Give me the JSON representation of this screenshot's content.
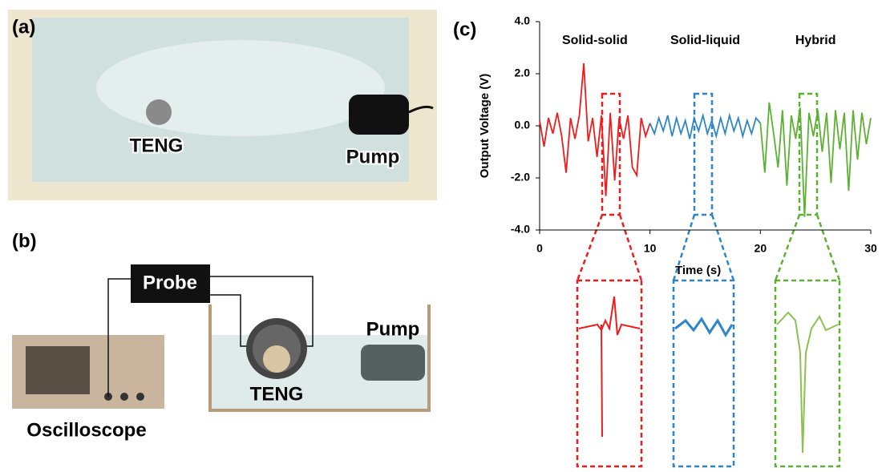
{
  "panels": {
    "a": {
      "label": "(a)",
      "teng": "TENG",
      "pump": "Pump"
    },
    "b": {
      "label": "(b)",
      "probe": "Probe",
      "oscilloscope": "Oscilloscope",
      "teng": "TENG",
      "pump": "Pump"
    }
  },
  "chart_data": {
    "type": "line",
    "panel_label": "(c)",
    "xlabel": "Time (s)",
    "ylabel": "Output Voltage (V)",
    "xlim": [
      0,
      30
    ],
    "ylim": [
      -4,
      4
    ],
    "xticks": [
      0,
      10,
      20,
      30
    ],
    "yticks": [
      {
        "value": 4,
        "label": "4.0"
      },
      {
        "value": 2,
        "label": "2.0"
      },
      {
        "value": 0,
        "label": "0.0"
      },
      {
        "value": -2,
        "label": "-2.0"
      },
      {
        "value": -4,
        "label": "-4.0"
      }
    ],
    "series": [
      {
        "name": "Solid-solid",
        "color": "#ee1c1c",
        "x": [
          0,
          0.4,
          0.8,
          1.2,
          1.6,
          2,
          2.4,
          2.8,
          3.2,
          3.6,
          4,
          4.4,
          4.8,
          5.2,
          5.6,
          6,
          6.4,
          6.8,
          7.2,
          7.6,
          8,
          8.4,
          8.8,
          9.2,
          9.6,
          10
        ],
        "values": [
          0.2,
          -0.8,
          0.3,
          -0.3,
          0.5,
          -0.4,
          -1.8,
          0.3,
          -0.5,
          0.4,
          2.4,
          -0.6,
          0.3,
          -1.2,
          0.4,
          -2.7,
          0.5,
          -2.1,
          0.3,
          -0.5,
          0.4,
          -1.6,
          -1.9,
          0.3,
          -0.4,
          0.1
        ]
      },
      {
        "name": "Solid-liquid",
        "color": "#2e86c8",
        "x": [
          10,
          10.4,
          10.8,
          11.2,
          11.6,
          12,
          12.4,
          12.8,
          13.2,
          13.6,
          14,
          14.4,
          14.8,
          15.2,
          15.6,
          16,
          16.4,
          16.8,
          17.2,
          17.6,
          18,
          18.4,
          18.8,
          19.2,
          19.6,
          20
        ],
        "values": [
          0.1,
          -0.3,
          0.3,
          -0.2,
          0.4,
          -0.4,
          0.3,
          -0.3,
          0.2,
          -0.5,
          0.3,
          -0.2,
          0.4,
          -0.3,
          0.2,
          -0.4,
          0.3,
          -0.3,
          0.4,
          -0.2,
          0.3,
          -0.4,
          0.2,
          -0.3,
          0.3,
          0.1
        ]
      },
      {
        "name": "Hybrid",
        "color": "#5bb131",
        "x": [
          20,
          20.4,
          20.8,
          21.2,
          21.6,
          22,
          22.4,
          22.8,
          23.2,
          23.6,
          24,
          24.4,
          24.8,
          25.2,
          25.6,
          26,
          26.4,
          26.8,
          27.2,
          27.6,
          28,
          28.4,
          28.8,
          29.2,
          29.6,
          30
        ],
        "values": [
          0.1,
          -1.8,
          0.9,
          -0.3,
          -1.6,
          0.6,
          -2.3,
          0.4,
          -0.5,
          0.7,
          -3.5,
          0.5,
          -0.4,
          0.6,
          -1,
          0.5,
          -2.2,
          0.6,
          -0.9,
          0.5,
          -2.5,
          0.6,
          -1.3,
          0.5,
          -0.7,
          0.3
        ]
      }
    ]
  }
}
